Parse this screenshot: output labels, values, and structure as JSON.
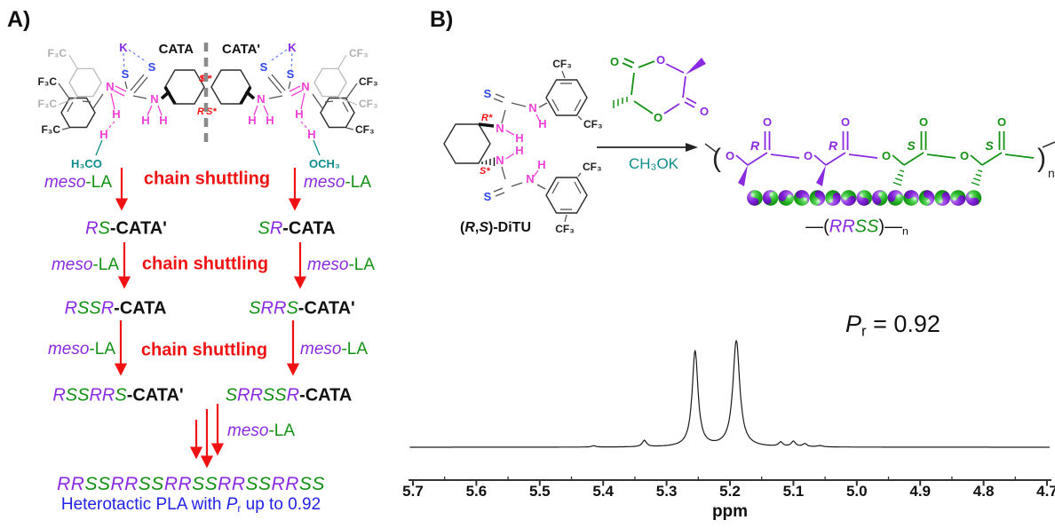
{
  "colors": {
    "purple": "#8a2be2",
    "green": "#149114",
    "red": "#f01212",
    "blue": "#2d46e8",
    "magenta": "#ee3fd6",
    "teal": "#0d8b8b",
    "blue_text": "#2323e6",
    "black": "#111111",
    "gray": "#b0b0b0"
  },
  "panel_a": {
    "label": "A)",
    "structures": {
      "cata_name": "CATA",
      "cata_prime_name": "CATA'",
      "k": "K",
      "s": "S",
      "n": "N",
      "h": "H",
      "r_star": "R*",
      "s_star": "S*",
      "f3c": "F₃C",
      "cf3": "CF₃",
      "h3co": "H₃CO",
      "och3": "OCH₃"
    },
    "meso_la": [
      {
        "t": "meso",
        "c": "purple",
        "i": 1
      },
      {
        "t": "-LA",
        "c": "green"
      }
    ],
    "chain_shuttling": "chain shuttling",
    "species": {
      "row1_left": [
        {
          "t": "R",
          "c": "purple",
          "i": 1
        },
        {
          "t": "S",
          "c": "green",
          "i": 1
        },
        {
          "t": "-CATA'",
          "b": 1
        }
      ],
      "row1_right": [
        {
          "t": "S",
          "c": "green",
          "i": 1
        },
        {
          "t": "R",
          "c": "purple",
          "i": 1
        },
        {
          "t": "-CATA",
          "b": 1
        }
      ],
      "row2_left": [
        {
          "t": "R",
          "c": "purple",
          "i": 1
        },
        {
          "t": "SS",
          "c": "green",
          "i": 1
        },
        {
          "t": "R",
          "c": "purple",
          "i": 1
        },
        {
          "t": "-CATA",
          "b": 1
        }
      ],
      "row2_right": [
        {
          "t": "S",
          "c": "green",
          "i": 1
        },
        {
          "t": "RR",
          "c": "purple",
          "i": 1
        },
        {
          "t": "S",
          "c": "green",
          "i": 1
        },
        {
          "t": "-CATA'",
          "b": 1
        }
      ],
      "row3_left": [
        {
          "t": "R",
          "c": "purple",
          "i": 1
        },
        {
          "t": "SS",
          "c": "green",
          "i": 1
        },
        {
          "t": "RR",
          "c": "purple",
          "i": 1
        },
        {
          "t": "S",
          "c": "green",
          "i": 1
        },
        {
          "t": "-CATA'",
          "b": 1
        }
      ],
      "row3_right": [
        {
          "t": "S",
          "c": "green",
          "i": 1
        },
        {
          "t": "RR",
          "c": "purple",
          "i": 1
        },
        {
          "t": "SS",
          "c": "green",
          "i": 1
        },
        {
          "t": "R",
          "c": "purple",
          "i": 1
        },
        {
          "t": "-CATA",
          "b": 1
        }
      ]
    },
    "final_sequence": [
      {
        "t": "RR",
        "c": "purple",
        "i": 1
      },
      {
        "t": "SS",
        "c": "green",
        "i": 1
      },
      {
        "t": "RR",
        "c": "purple",
        "i": 1
      },
      {
        "t": "SS",
        "c": "green",
        "i": 1
      },
      {
        "t": "RR",
        "c": "purple",
        "i": 1
      },
      {
        "t": "SS",
        "c": "green",
        "i": 1
      },
      {
        "t": "RR",
        "c": "purple",
        "i": 1
      },
      {
        "t": "SS",
        "c": "green",
        "i": 1
      },
      {
        "t": "RR",
        "c": "purple",
        "i": 1
      },
      {
        "t": "SS",
        "c": "green",
        "i": 1
      }
    ],
    "final_caption": [
      {
        "t": "Heterotactic PLA with ",
        "c": "blue_text"
      },
      {
        "t": "P",
        "c": "blue_text",
        "i": 1
      },
      {
        "t": "r",
        "c": "blue_text",
        "sub": 1
      },
      {
        "t": " up to 0.92",
        "c": "blue_text"
      }
    ]
  },
  "panel_b": {
    "label": "B)",
    "ditu": {
      "name_segments": [
        {
          "t": "(",
          "b": 1
        },
        {
          "t": "R",
          "b": 1,
          "i": 1
        },
        {
          "t": ",",
          "b": 1
        },
        {
          "t": "S",
          "b": 1,
          "i": 1
        },
        {
          "t": ")-DiTU",
          "b": 1
        }
      ],
      "s": "S",
      "n": "N",
      "h": "H",
      "r_star": "R*",
      "s_star": "S*",
      "cf3": "CF₃"
    },
    "lactide": {
      "o": "O"
    },
    "catalyst_label": "CH₃OK",
    "polymer": {
      "o": "O",
      "n": "n",
      "open": "(",
      "close": ")",
      "units": [
        {
          "label": "R",
          "color": "purple",
          "wedge": "solid"
        },
        {
          "label": "R",
          "color": "purple",
          "wedge": "solid"
        },
        {
          "label": "S",
          "color": "green",
          "wedge": "hash"
        },
        {
          "label": "S",
          "color": "green",
          "wedge": "hash"
        }
      ]
    },
    "balls": {
      "count": 15
    },
    "rrss_segments": [
      {
        "t": "—"
      },
      {
        "t": "("
      },
      {
        "t": "RR",
        "c": "purple",
        "i": 1
      },
      {
        "t": "SS",
        "c": "green",
        "i": 1
      },
      {
        "t": ")"
      },
      {
        "t": "—"
      },
      {
        "t": "n",
        "sub": 1
      }
    ],
    "pr_segments": [
      {
        "t": "P",
        "i": 1
      },
      {
        "t": "r",
        "sub": 1
      },
      {
        "t": " = 0.92"
      }
    ]
  },
  "chart_data": {
    "type": "line",
    "xlabel": "ppm",
    "x_ticks": [
      "5.7",
      "5.6",
      "5.5",
      "5.4",
      "5.3",
      "5.2",
      "5.1",
      "5.0",
      "4.9",
      "4.8",
      "4.7"
    ],
    "x_range": [
      5.7,
      4.7
    ],
    "x_axis_reversed": true,
    "grid": false,
    "annotation": "Pr = 0.92",
    "peaks": [
      {
        "ppm": 5.415,
        "rel_intensity": 0.012,
        "width_ppm": 0.004
      },
      {
        "ppm": 5.335,
        "rel_intensity": 0.06,
        "width_ppm": 0.004
      },
      {
        "ppm": 5.255,
        "rel_intensity": 0.9,
        "width_ppm": 0.0055
      },
      {
        "ppm": 5.19,
        "rel_intensity": 1.0,
        "width_ppm": 0.0065
      },
      {
        "ppm": 5.12,
        "rel_intensity": 0.04,
        "width_ppm": 0.004
      },
      {
        "ppm": 5.1,
        "rel_intensity": 0.05,
        "width_ppm": 0.004
      },
      {
        "ppm": 5.082,
        "rel_intensity": 0.028,
        "width_ppm": 0.004
      },
      {
        "ppm": 5.058,
        "rel_intensity": 0.012,
        "width_ppm": 0.005
      }
    ]
  }
}
